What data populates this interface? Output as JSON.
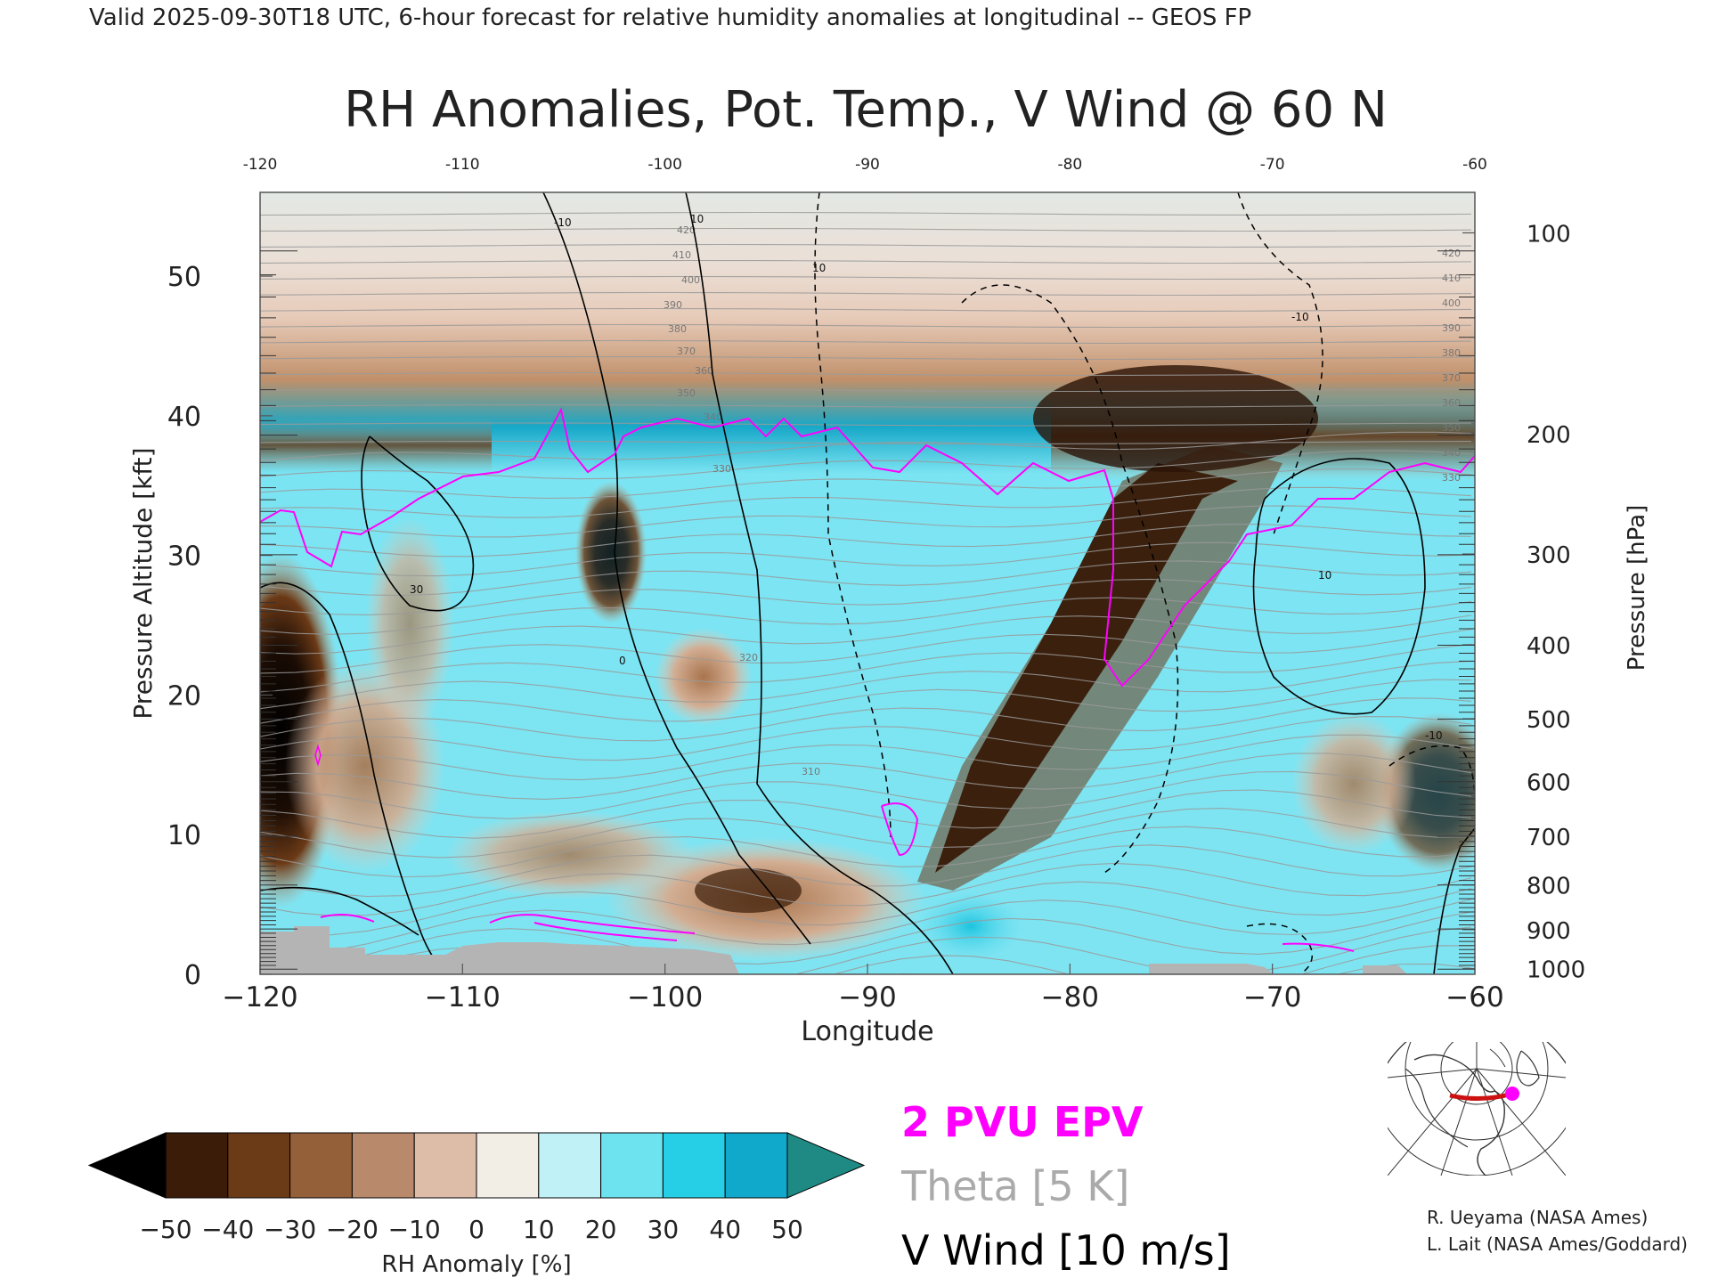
{
  "header": {
    "valid_line": "Valid 2025-09-30T18 UTC, 6-hour forecast for relative humidity anomalies at longitudinal -- GEOS FP"
  },
  "chart_data": {
    "type": "heatmap",
    "title": "RH Anomalies, Pot. Temp., V Wind @ 60 N",
    "xlabel": "Longitude",
    "ylabel_left": "Pressure Altitude [kft]",
    "ylabel_right": "Pressure [hPa]",
    "xlim": [
      -120,
      -60
    ],
    "ylim_kft": [
      0,
      56
    ],
    "x_ticks": [
      -120,
      -110,
      -100,
      -90,
      -80,
      -70,
      -60
    ],
    "x_tick_labels": [
      "−120",
      "−110",
      "−100",
      "−90",
      "−80",
      "−70",
      "−60"
    ],
    "top_tick_labels": [
      "-120",
      "-110",
      "-100",
      "-90",
      "-80",
      "-70",
      "-60"
    ],
    "y_ticks_kft": [
      0,
      10,
      20,
      30,
      40,
      50
    ],
    "y_tick_labels": [
      "0",
      "10",
      "20",
      "30",
      "40",
      "50"
    ],
    "pressure_levels": [
      {
        "hpa": 100,
        "kft": 53.1
      },
      {
        "hpa": 200,
        "kft": 38.7
      },
      {
        "hpa": 300,
        "kft": 30.1
      },
      {
        "hpa": 400,
        "kft": 23.6
      },
      {
        "hpa": 500,
        "kft": 18.3
      },
      {
        "hpa": 600,
        "kft": 13.8
      },
      {
        "hpa": 700,
        "kft": 9.9
      },
      {
        "hpa": 800,
        "kft": 6.4
      },
      {
        "hpa": 900,
        "kft": 3.2
      },
      {
        "hpa": 1000,
        "kft": 0.4
      }
    ],
    "pressure_labels": [
      "100",
      "200",
      "300",
      "400",
      "500",
      "600",
      "700",
      "800",
      "900",
      "1000"
    ],
    "theta_labels": [
      "420",
      "410",
      "400",
      "390",
      "380",
      "370",
      "360",
      "350",
      "340",
      "330",
      "320",
      "310"
    ],
    "wind_contour_labels": [
      "-10",
      "0",
      "10",
      "30"
    ],
    "colorbar": {
      "label": "RH Anomaly [%]",
      "ticks": [
        "−50",
        "−40",
        "−30",
        "−20",
        "−10",
        "0",
        "10",
        "20",
        "30",
        "40",
        "50"
      ],
      "values": [
        -50,
        -40,
        -30,
        -20,
        -10,
        0,
        10,
        20,
        30,
        40,
        50
      ],
      "colors": [
        "#000000",
        "#3a1c08",
        "#6b3a17",
        "#93603a",
        "#b8896a",
        "#ddbda8",
        "#f2eee6",
        "#bff1f6",
        "#6ee3f0",
        "#26cfe6",
        "#10a9cc",
        "#0a6f8e",
        "#1f8a84"
      ]
    },
    "legend": {
      "epv": "2 PVU EPV",
      "theta": "Theta [5 K]",
      "vwind": "V Wind [10 m/s]",
      "epv_color": "#ff00ff",
      "theta_color": "#aaaaaa",
      "vwind_color": "#000000"
    }
  },
  "credits": {
    "line1": "R. Ueyama (NASA Ames)",
    "line2": "L. Lait (NASA Ames/Goddard)"
  },
  "inset_map": {
    "marker_color": "#ff00ff",
    "path_color": "#cc1111"
  }
}
